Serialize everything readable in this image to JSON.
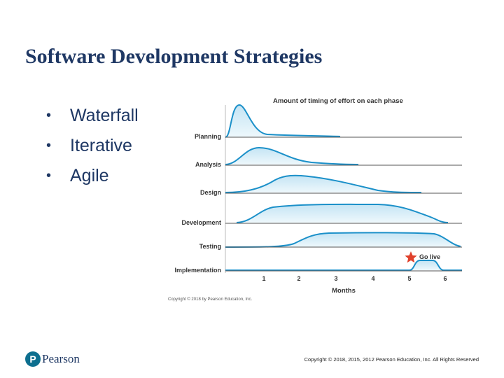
{
  "slide": {
    "title": "Software Development Strategies",
    "bullets": [
      "Waterfall",
      "Iterative",
      "Agile"
    ]
  },
  "figure": {
    "heading": "Amount of timing of effort on each phase",
    "phases": [
      "Planning",
      "Analysis",
      "Design",
      "Development",
      "Testing",
      "Implementation"
    ],
    "x_ticks": [
      "1",
      "2",
      "3",
      "4",
      "5",
      "6"
    ],
    "x_label": "Months",
    "marker_label": "Go live",
    "credit": "Copyright © 2018 by Pearson Education, Inc."
  },
  "footer": {
    "brand": "Pearson",
    "brand_mark": "P",
    "copyright": "Copyright © 2018, 2015, 2012 Pearson Education, Inc. All Rights Reserved"
  },
  "colors": {
    "title": "#1f3864",
    "curve_fill": "#daeef8",
    "curve_stroke": "#1b90c9",
    "star": "#e0412c"
  }
}
